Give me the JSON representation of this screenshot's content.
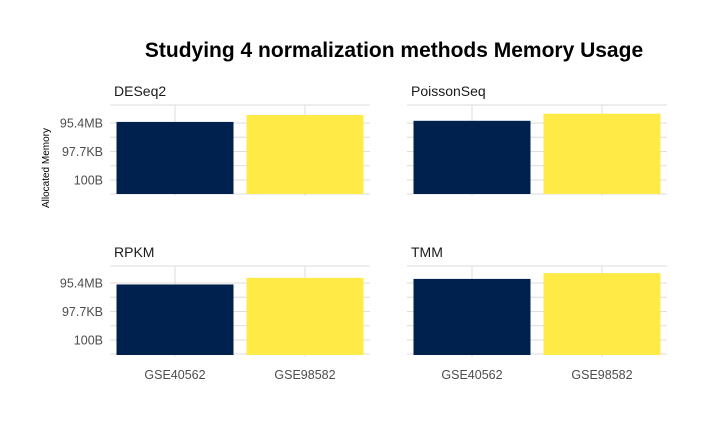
{
  "chart_data": {
    "type": "bar",
    "title": "Studying 4 normalization methods Memory Usage",
    "ylabel": "Allocated Memory",
    "y_scale": "log",
    "y_ticks": [
      "95.4MB",
      "97.7KB",
      "100B"
    ],
    "y_tick_values_bytes": [
      100000000,
      100000,
      100
    ],
    "categories": [
      "GSE40562",
      "GSE98582"
    ],
    "colors": {
      "GSE40562": "#00204d",
      "GSE98582": "#ffea46"
    },
    "grid": true,
    "legend": "none",
    "facets": [
      {
        "name": "DESeq2",
        "values": [
          130000000,
          700000000
        ]
      },
      {
        "name": "PoissonSeq",
        "values": [
          170000000,
          950000000
        ]
      },
      {
        "name": "RPKM",
        "values": [
          70000000,
          350000000
        ]
      },
      {
        "name": "TMM",
        "values": [
          270000000,
          1100000000
        ]
      }
    ]
  }
}
